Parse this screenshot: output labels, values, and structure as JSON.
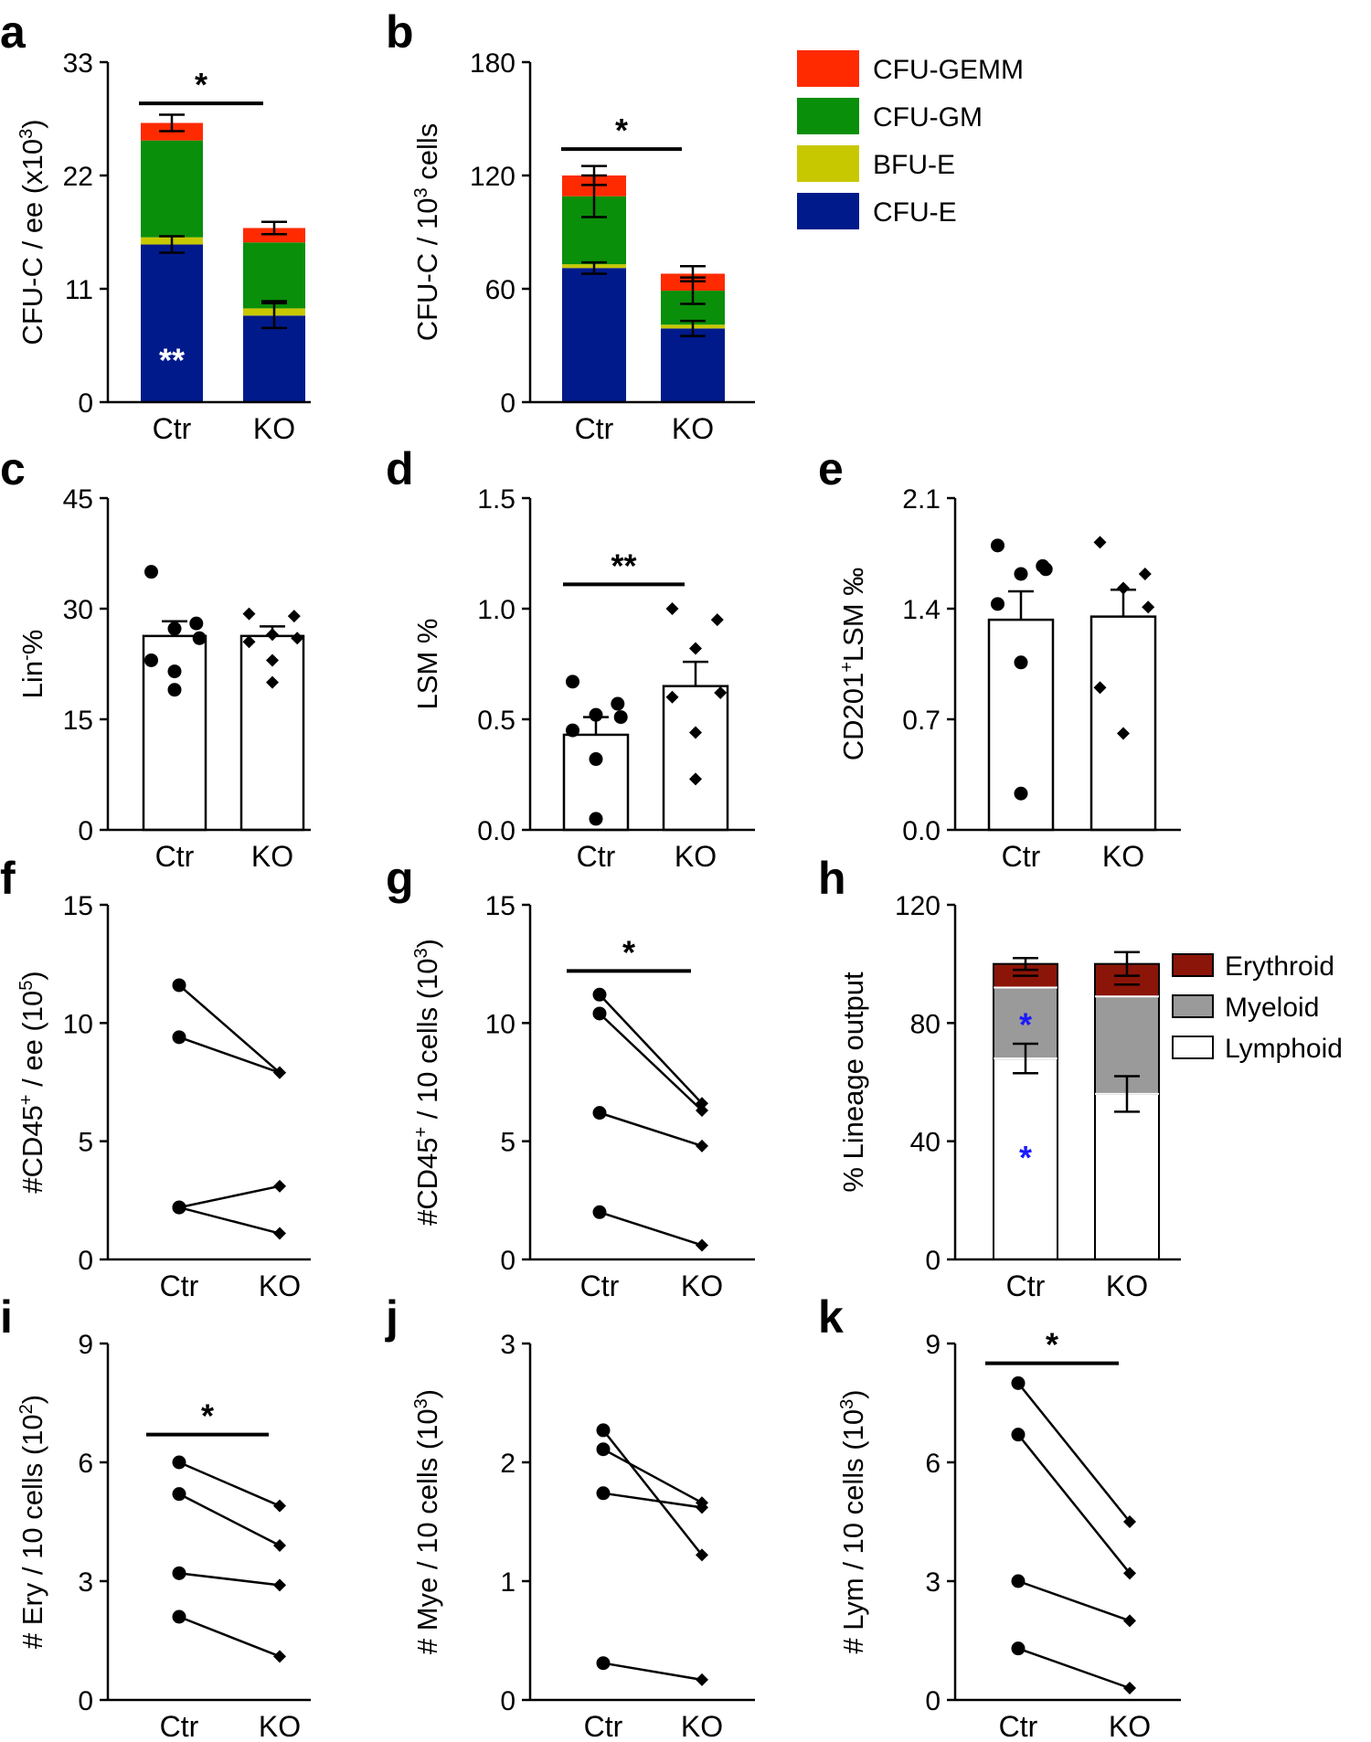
{
  "figure": {
    "legend_top": [
      {
        "label": "CFU-GEMM",
        "color": "#ff2a00"
      },
      {
        "label": "CFU-GM",
        "color": "#0a8f0a"
      },
      {
        "label": "BFU-E",
        "color": "#c8c800"
      },
      {
        "label": "CFU-E",
        "color": "#001a8c"
      }
    ],
    "legend_h": [
      {
        "label": "Erythroid",
        "color": "#8b1508"
      },
      {
        "label": "Myeloid",
        "color": "#9a9a9a"
      },
      {
        "label": "Lymphoid",
        "color": "#ffffff"
      }
    ]
  },
  "chart_data": [
    {
      "id": "a",
      "panel_label": "a",
      "type": "bar",
      "stacked": true,
      "categories": [
        "Ctr",
        "KO"
      ],
      "ylim": [
        0,
        33
      ],
      "yticks": [
        "0",
        "11",
        "22",
        "33"
      ],
      "ylabel_main": "CFU-C / ee (x10",
      "ylabel_sup": "3",
      "ylabel_end": ")",
      "series": [
        {
          "name": "CFU-E",
          "color": "#001a8c",
          "values": [
            15.3,
            8.4
          ],
          "errors": [
            0.8,
            1.2
          ]
        },
        {
          "name": "BFU-E",
          "color": "#c8c800",
          "values": [
            0.7,
            0.7
          ],
          "errors": [
            0,
            0
          ]
        },
        {
          "name": "CFU-GM",
          "color": "#0a8f0a",
          "values": [
            9.4,
            6.4
          ],
          "errors": [
            0,
            0
          ]
        },
        {
          "name": "CFU-GEMM",
          "color": "#ff2a00",
          "values": [
            1.7,
            1.4
          ],
          "errors": [
            0.8,
            0.6
          ]
        }
      ],
      "inner_errors": [
        {
          "cat": 1,
          "top": 9.8,
          "bottom": 9.8
        }
      ],
      "inner_marks": [
        {
          "cat": 0,
          "value": 4.2,
          "text": "**",
          "color": "#ffffff"
        }
      ],
      "sig": {
        "from": 0,
        "to": 1,
        "value": 29.0,
        "text": "*"
      }
    },
    {
      "id": "b",
      "panel_label": "b",
      "type": "bar",
      "stacked": true,
      "categories": [
        "Ctr",
        "KO"
      ],
      "ylim": [
        0,
        180
      ],
      "yticks": [
        "0",
        "60",
        "120",
        "180"
      ],
      "ylabel_main": "CFU-C / 10",
      "ylabel_sup": "3",
      "ylabel_end": " cells",
      "series": [
        {
          "name": "CFU-E",
          "color": "#001a8c",
          "values": [
            71,
            39
          ],
          "errors": [
            3,
            4
          ]
        },
        {
          "name": "BFU-E",
          "color": "#c8c800",
          "values": [
            2,
            2
          ],
          "errors": [
            0,
            0
          ]
        },
        {
          "name": "CFU-GM",
          "color": "#0a8f0a",
          "values": [
            36,
            18
          ],
          "errors": [
            11,
            7
          ]
        },
        {
          "name": "CFU-GEMM",
          "color": "#ff2a00",
          "values": [
            11,
            9
          ],
          "errors": [
            5,
            4
          ]
        }
      ],
      "sig": {
        "from": 0,
        "to": 1,
        "value": 134,
        "text": "*"
      }
    },
    {
      "id": "c",
      "panel_label": "c",
      "type": "bar",
      "stacked": false,
      "categories": [
        "Ctr",
        "KO"
      ],
      "ylim": [
        0,
        45
      ],
      "yticks": [
        "0",
        "15",
        "30",
        "45"
      ],
      "ylabel_main": "Lin",
      "ylabel_sup": "-",
      "ylabel_end": "%",
      "means": [
        26.3,
        26.3
      ],
      "errors": [
        2.0,
        1.3
      ],
      "points": [
        [
          35,
          28,
          27.3,
          26,
          23,
          21.5,
          19
        ],
        [
          29.3,
          29,
          26.5,
          26,
          25.5,
          23,
          20
        ]
      ]
    },
    {
      "id": "d",
      "panel_label": "d",
      "type": "bar",
      "stacked": false,
      "categories": [
        "Ctr",
        "KO"
      ],
      "ylim": [
        0,
        1.5
      ],
      "yticks": [
        "0.0",
        "0.5",
        "1.0",
        "1.5"
      ],
      "ylabel_main": "LSM %",
      "ylabel_sup": "",
      "ylabel_end": "",
      "means": [
        0.43,
        0.65
      ],
      "errors": [
        0.08,
        0.11
      ],
      "points": [
        [
          0.67,
          0.57,
          0.52,
          0.51,
          0.45,
          0.32,
          0.05
        ],
        [
          1.0,
          0.95,
          0.82,
          0.62,
          0.6,
          0.44,
          0.23
        ]
      ],
      "sig": {
        "from": 0,
        "to": 1,
        "value": 1.11,
        "text": "**"
      }
    },
    {
      "id": "e",
      "panel_label": "e",
      "type": "bar",
      "stacked": false,
      "categories": [
        "Ctr",
        "KO"
      ],
      "ylim": [
        0,
        2.1
      ],
      "yticks": [
        "0.0",
        "0.7",
        "1.4",
        "2.1"
      ],
      "ylabel_main": "CD201",
      "ylabel_sup": "+",
      "ylabel_end": "LSM ‰",
      "means": [
        1.33,
        1.35
      ],
      "errors": [
        0.18,
        0.17
      ],
      "points": [
        [
          1.8,
          1.67,
          1.62,
          1.65,
          1.43,
          1.06,
          0.23
        ],
        [
          1.82,
          1.62,
          1.53,
          1.41,
          0.9,
          0.61
        ]
      ]
    },
    {
      "id": "f",
      "panel_label": "f",
      "type": "paired",
      "categories": [
        "Ctr",
        "KO"
      ],
      "ylim": [
        0,
        15
      ],
      "yticks": [
        "0",
        "5",
        "10",
        "15"
      ],
      "ylabel_main": "#CD45",
      "ylabel_sup": "+",
      "ylabel_end": " / ee (10",
      "ylabel_sup2": "5",
      "ylabel_end2": ")",
      "pairs": [
        [
          11.6,
          7.9
        ],
        [
          9.4,
          7.9
        ],
        [
          2.2,
          3.1
        ],
        [
          2.2,
          1.1
        ]
      ]
    },
    {
      "id": "g",
      "panel_label": "g",
      "type": "paired",
      "categories": [
        "Ctr",
        "KO"
      ],
      "ylim": [
        0,
        15
      ],
      "yticks": [
        "0",
        "5",
        "10",
        "15"
      ],
      "ylabel_main": "#CD45",
      "ylabel_sup": "+",
      "ylabel_end": " / 10 cells (10",
      "ylabel_sup2": "3",
      "ylabel_end2": ")",
      "pairs": [
        [
          11.2,
          6.6
        ],
        [
          10.4,
          6.3
        ],
        [
          6.2,
          4.8
        ],
        [
          2.0,
          0.6
        ]
      ],
      "sig": {
        "from": 0,
        "to": 1,
        "value": 12.2,
        "text": "*"
      }
    },
    {
      "id": "h",
      "panel_label": "h",
      "type": "bar",
      "stacked": true,
      "categories": [
        "Ctr",
        "KO"
      ],
      "ylim": [
        0,
        120
      ],
      "yticks": [
        "0",
        "40",
        "80",
        "120"
      ],
      "ylabel_main": "% Lineage output",
      "ylabel_sup": "",
      "ylabel_end": "",
      "series": [
        {
          "name": "Lymphoid",
          "color": "#ffffff",
          "values": [
            68,
            56
          ],
          "errors": [
            5,
            6
          ]
        },
        {
          "name": "Myeloid",
          "color": "#9a9a9a",
          "values": [
            24,
            33
          ],
          "errors": [
            0,
            0
          ]
        },
        {
          "name": "Erythroid",
          "color": "#8b1508",
          "values": [
            8,
            11
          ],
          "errors": [
            2,
            4
          ]
        }
      ],
      "inner_errors": [
        {
          "cat": 0,
          "top": 96,
          "bottom": 96
        },
        {
          "cat": 1,
          "top": 93,
          "bottom": 93
        }
      ],
      "inner_marks": [
        {
          "cat": 0,
          "value": 80,
          "text": "*",
          "color": "#1a1aff"
        },
        {
          "cat": 0,
          "value": 35,
          "text": "*",
          "color": "#1a1aff"
        }
      ]
    },
    {
      "id": "i",
      "panel_label": "i",
      "type": "paired",
      "categories": [
        "Ctr",
        "KO"
      ],
      "ylim": [
        0,
        9
      ],
      "yticks": [
        "0",
        "3",
        "6",
        "9"
      ],
      "ylabel_main": "# Ery / 10 cells (10",
      "ylabel_sup": "2",
      "ylabel_end": ")",
      "pairs": [
        [
          6.0,
          4.9
        ],
        [
          5.2,
          3.9
        ],
        [
          3.2,
          2.9
        ],
        [
          2.1,
          1.1
        ]
      ],
      "sig": {
        "from": 0,
        "to": 1,
        "value": 6.7,
        "text": "*"
      }
    },
    {
      "id": "j",
      "panel_label": "j",
      "type": "paired",
      "categories": [
        "Ctr",
        "KO"
      ],
      "ylim": [
        0,
        3
      ],
      "yticks": [
        "0",
        "1",
        "2",
        "3"
      ],
      "ylabel_main": "# Mye / 10 cells (10",
      "ylabel_sup": "3",
      "ylabel_end": ")",
      "pairs": [
        [
          2.27,
          1.22
        ],
        [
          2.11,
          1.66
        ],
        [
          1.74,
          1.62
        ],
        [
          0.31,
          0.17
        ]
      ]
    },
    {
      "id": "k",
      "panel_label": "k",
      "type": "paired",
      "categories": [
        "Ctr",
        "KO"
      ],
      "ylim": [
        0,
        9
      ],
      "yticks": [
        "0",
        "3",
        "6",
        "9"
      ],
      "ylabel_main": "# Lym / 10 cells (10",
      "ylabel_sup": "3",
      "ylabel_end": ")",
      "pairs": [
        [
          8.0,
          4.5
        ],
        [
          6.7,
          3.2
        ],
        [
          3.0,
          2.0
        ],
        [
          1.3,
          0.3
        ]
      ],
      "sig": {
        "from": 0,
        "to": 1,
        "value": 8.5,
        "text": "*"
      }
    }
  ]
}
